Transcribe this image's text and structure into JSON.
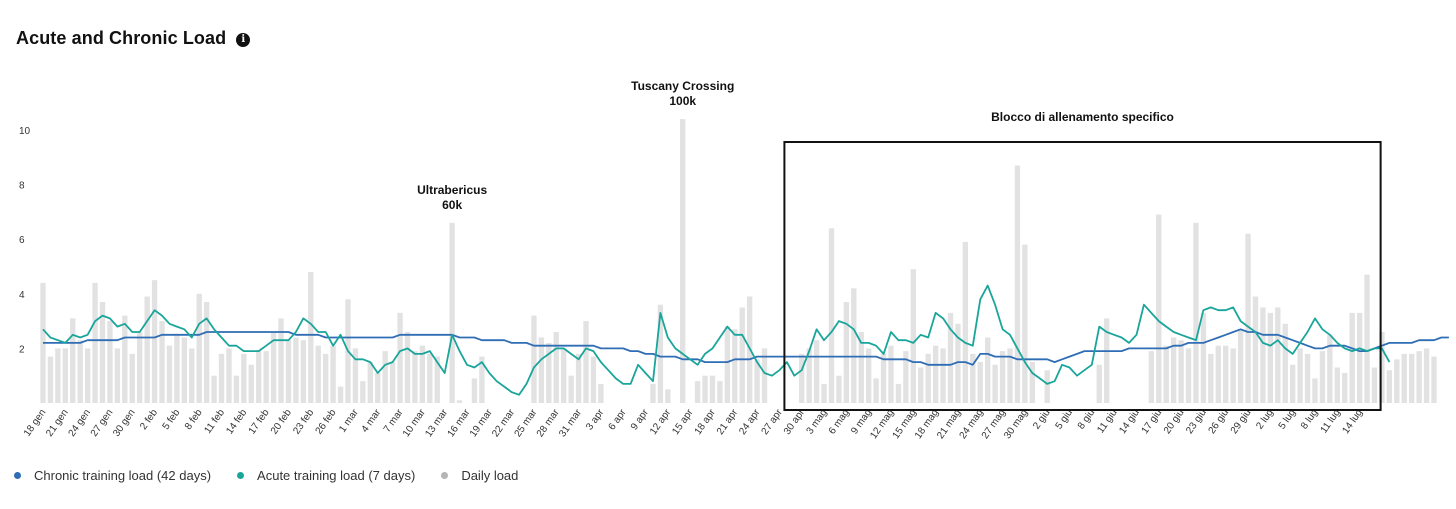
{
  "header": {
    "title": "Acute and Chronic Load",
    "info_icon": "info-icon"
  },
  "legend": [
    {
      "label": "Chronic training load (42 days)",
      "color": "#2f6db5"
    },
    {
      "label": "Acute training load (7 days)",
      "color": "#1aa59b"
    },
    {
      "label": "Daily load",
      "color": "#b5b5b5"
    }
  ],
  "chart_data": {
    "type": "bar+line",
    "start_date": "18 gen",
    "y_ticks": [
      2,
      4,
      6,
      8,
      10
    ],
    "ylim": [
      0,
      10.5
    ],
    "x_tick_labels": [
      "18 gen",
      "21 gen",
      "24 gen",
      "27 gen",
      "30 gen",
      "2 feb",
      "5 feb",
      "8 feb",
      "11 feb",
      "14 feb",
      "17 feb",
      "20 feb",
      "23 feb",
      "26 feb",
      "1 mar",
      "4 mar",
      "7 mar",
      "10 mar",
      "13 mar",
      "16 mar",
      "19 mar",
      "22 mar",
      "25 mar",
      "28 mar",
      "31 mar",
      "3 apr",
      "6 apr",
      "9 apr",
      "12 apr",
      "15 apr",
      "18 apr",
      "21 apr",
      "24 apr",
      "27 apr",
      "30 apr",
      "3 mag",
      "6 mag",
      "9 mag",
      "12 mag",
      "15 mag",
      "18 mag",
      "21 mag",
      "24 mag",
      "27 mag",
      "30 mag",
      "2 giu",
      "5 giu",
      "8 giu",
      "11 giu",
      "14 giu",
      "17 giu",
      "20 giu",
      "23 giu",
      "26 giu",
      "29 giu",
      "2 lug",
      "5 lug",
      "8 lug",
      "11 lug",
      "14 lug"
    ],
    "series": [
      {
        "name": "Daily load",
        "kind": "bar",
        "color": "#e2e2e2",
        "values": [
          4.4,
          1.7,
          2.0,
          2.0,
          3.1,
          2.3,
          2.0,
          4.4,
          3.7,
          3.0,
          2.0,
          3.2,
          1.8,
          2.6,
          3.9,
          4.5,
          3.0,
          2.1,
          2.5,
          2.4,
          2.0,
          4.0,
          3.7,
          1.0,
          1.8,
          2.0,
          1.0,
          1.8,
          1.4,
          1.9,
          1.9,
          2.6,
          3.1,
          2.3,
          2.4,
          2.3,
          4.8,
          2.1,
          1.8,
          2.1,
          0.6,
          3.8,
          2.0,
          0.8,
          1.5,
          1.1,
          1.9,
          1.5,
          3.3,
          2.6,
          1.9,
          2.1,
          1.8,
          1.7,
          0.0,
          6.6,
          0.1,
          0.0,
          0.9,
          1.7,
          0.0,
          0.0,
          0.0,
          0.0,
          0.0,
          0.0,
          3.2,
          2.4,
          2.2,
          2.6,
          2.0,
          1.0,
          1.8,
          3.0,
          1.7,
          0.7,
          0.0,
          0.0,
          0.0,
          0.0,
          0.0,
          0.0,
          0.7,
          3.6,
          0.5,
          0.0,
          10.4,
          0.0,
          0.8,
          1.0,
          1.0,
          0.8,
          2.8,
          2.7,
          3.5,
          3.9,
          1.6,
          2.0,
          0.0,
          0.0,
          0.0,
          0.0,
          1.8,
          2.0,
          2.3,
          0.7,
          6.4,
          1.0,
          3.7,
          4.2,
          2.6,
          2.0,
          0.9,
          1.8,
          2.1,
          0.7,
          1.9,
          4.9,
          1.3,
          1.8,
          2.1,
          2.0,
          3.3,
          2.9,
          5.9,
          1.8,
          1.5,
          2.4,
          1.4,
          1.9,
          2.0,
          8.7,
          5.8,
          1.5,
          0.0,
          1.2,
          0.0,
          0.0,
          0.0,
          0.0,
          0.0,
          0.0,
          1.4,
          3.1,
          0.0,
          0.0,
          0.0,
          0.0,
          0.0,
          1.9,
          6.9,
          2.1,
          2.4,
          2.3,
          2.0,
          6.6,
          3.3,
          1.8,
          2.1,
          2.1,
          2.0,
          2.7,
          6.2,
          3.9,
          3.5,
          3.3,
          3.5,
          2.9,
          1.4,
          2.0,
          1.8,
          0.9,
          1.9,
          2.5,
          1.3,
          1.1,
          3.3,
          3.3,
          4.7,
          1.3,
          2.6,
          1.2,
          1.6,
          1.8,
          1.8,
          1.9,
          2.0,
          1.7
        ]
      },
      {
        "name": "Acute training load (7 days)",
        "kind": "line",
        "color": "#1aa59b",
        "values": [
          2.7,
          2.4,
          2.3,
          2.2,
          2.5,
          2.4,
          2.5,
          3.0,
          3.2,
          3.1,
          2.8,
          2.9,
          2.6,
          2.6,
          3.0,
          3.4,
          3.2,
          2.9,
          2.8,
          2.7,
          2.4,
          2.9,
          3.1,
          2.7,
          2.4,
          2.1,
          2.1,
          1.9,
          1.9,
          1.9,
          2.1,
          2.3,
          2.3,
          2.3,
          2.6,
          3.1,
          2.9,
          2.6,
          2.6,
          2.1,
          2.5,
          1.9,
          1.6,
          1.6,
          1.5,
          1.1,
          1.4,
          1.5,
          1.9,
          2.0,
          1.8,
          1.8,
          1.9,
          1.5,
          1.1,
          2.5,
          1.9,
          1.4,
          1.3,
          1.5,
          1.1,
          0.8,
          0.6,
          0.4,
          0.3,
          0.7,
          1.3,
          1.6,
          1.8,
          2.0,
          2.0,
          1.8,
          1.6,
          2.0,
          1.9,
          1.5,
          1.2,
          0.9,
          0.7,
          0.7,
          1.4,
          1.1,
          0.8,
          3.3,
          2.4,
          2.0,
          1.8,
          1.6,
          1.4,
          1.8,
          2.0,
          2.4,
          2.8,
          2.5,
          2.5,
          2.0,
          1.5,
          1.1,
          1.0,
          1.2,
          1.5,
          1.0,
          1.2,
          1.9,
          2.7,
          2.3,
          2.6,
          3.0,
          2.9,
          2.7,
          2.2,
          2.2,
          2.1,
          1.8,
          2.6,
          2.3,
          2.3,
          2.2,
          2.5,
          2.4,
          3.3,
          3.1,
          2.7,
          2.4,
          2.2,
          2.1,
          3.8,
          4.3,
          3.6,
          2.7,
          2.5,
          2.0,
          1.5,
          1.1,
          0.9,
          0.7,
          0.8,
          1.4,
          1.3,
          1.0,
          1.2,
          1.4,
          2.8,
          2.6,
          2.5,
          2.4,
          2.2,
          2.5,
          3.6,
          3.3,
          3.0,
          2.8,
          2.6,
          2.5,
          2.4,
          2.3,
          3.4,
          3.5,
          3.4,
          3.4,
          3.5,
          3.0,
          2.8,
          2.6,
          2.2,
          2.1,
          2.3,
          2.0,
          1.8,
          2.2,
          2.6,
          3.1,
          2.7,
          2.5,
          2.2,
          2.0,
          1.9,
          2.0,
          1.9,
          2.0,
          2.0,
          1.5
        ]
      },
      {
        "name": "Chronic training load (42 days)",
        "kind": "line",
        "color": "#2f6db5",
        "values": [
          2.2,
          2.2,
          2.2,
          2.2,
          2.2,
          2.2,
          2.3,
          2.3,
          2.3,
          2.3,
          2.3,
          2.4,
          2.4,
          2.4,
          2.4,
          2.4,
          2.5,
          2.5,
          2.5,
          2.5,
          2.5,
          2.5,
          2.6,
          2.6,
          2.6,
          2.6,
          2.6,
          2.6,
          2.6,
          2.6,
          2.6,
          2.6,
          2.6,
          2.6,
          2.5,
          2.5,
          2.5,
          2.5,
          2.4,
          2.4,
          2.4,
          2.4,
          2.4,
          2.4,
          2.4,
          2.4,
          2.4,
          2.4,
          2.5,
          2.5,
          2.5,
          2.5,
          2.5,
          2.5,
          2.5,
          2.5,
          2.4,
          2.4,
          2.4,
          2.3,
          2.3,
          2.3,
          2.3,
          2.2,
          2.2,
          2.2,
          2.1,
          2.1,
          2.1,
          2.1,
          2.1,
          2.1,
          2.1,
          2.1,
          2.1,
          2.0,
          2.0,
          2.0,
          2.0,
          1.9,
          1.9,
          1.8,
          1.8,
          1.7,
          1.7,
          1.7,
          1.6,
          1.6,
          1.6,
          1.5,
          1.5,
          1.5,
          1.5,
          1.6,
          1.6,
          1.6,
          1.7,
          1.7,
          1.7,
          1.7,
          1.7,
          1.7,
          1.7,
          1.7,
          1.7,
          1.7,
          1.7,
          1.7,
          1.7,
          1.7,
          1.7,
          1.7,
          1.7,
          1.6,
          1.6,
          1.6,
          1.6,
          1.5,
          1.5,
          1.4,
          1.4,
          1.4,
          1.4,
          1.5,
          1.5,
          1.4,
          1.8,
          1.8,
          1.7,
          1.7,
          1.7,
          1.6,
          1.6,
          1.6,
          1.6,
          1.6,
          1.5,
          1.6,
          1.7,
          1.8,
          1.9,
          1.9,
          1.9,
          1.9,
          1.9,
          1.9,
          2.0,
          2.0,
          2.0,
          2.0,
          2.0,
          2.0,
          2.1,
          2.1,
          2.2,
          2.2,
          2.2,
          2.3,
          2.4,
          2.5,
          2.6,
          2.7,
          2.6,
          2.6,
          2.5,
          2.5,
          2.5,
          2.4,
          2.3,
          2.2,
          2.1,
          2.0,
          2.0,
          2.1,
          2.1,
          2.1,
          2.0,
          1.9,
          1.9,
          2.0,
          2.1,
          2.2,
          2.2,
          2.2,
          2.2,
          2.3,
          2.3,
          2.3,
          2.4,
          2.4
        ]
      }
    ],
    "annotations": [
      {
        "name": "ultrabericus",
        "lines": [
          "Ultrabericus",
          "60k"
        ],
        "day": 55,
        "value": 6.6
      },
      {
        "name": "tuscany",
        "lines": [
          "Tuscany Crossing",
          "100k"
        ],
        "day": 86,
        "value": 10.4
      }
    ],
    "block": {
      "label": "Blocco di allenamento specifico",
      "from_label": "27 apr",
      "to_label": "14 lug"
    }
  }
}
